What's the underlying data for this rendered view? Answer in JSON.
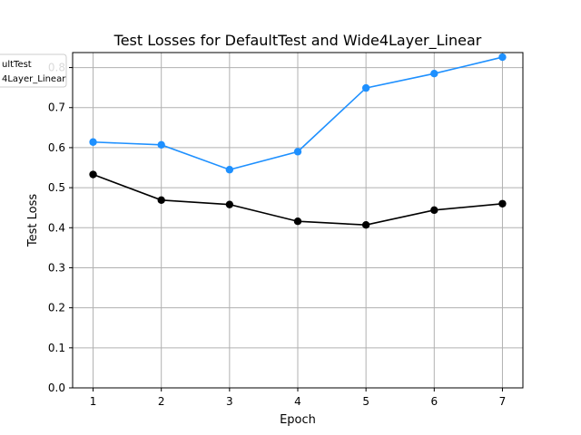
{
  "chart_data": {
    "type": "line",
    "title": "Test Losses for DefaultTest and Wide4Layer_Linear",
    "xlabel": "Epoch",
    "ylabel": "Test Loss",
    "x": [
      1,
      2,
      3,
      4,
      5,
      6,
      7
    ],
    "xlim": [
      0.7,
      7.3
    ],
    "ylim": [
      0.0,
      0.8375
    ],
    "yticks": [
      "0.0",
      "0.1",
      "0.2",
      "0.3",
      "0.4",
      "0.5",
      "0.6",
      "0.7",
      "0.8"
    ],
    "xticks": [
      "1",
      "2",
      "3",
      "4",
      "5",
      "6",
      "7"
    ],
    "grid": true,
    "legend_position": "top-left",
    "legend_labels": [
      "ultTest",
      "4Layer_Linear"
    ],
    "series": [
      {
        "name": "DefaultTest",
        "color": "#000000",
        "values": [
          0.533,
          0.469,
          0.458,
          0.416,
          0.407,
          0.444,
          0.46
        ]
      },
      {
        "name": "Wide4Layer_Linear",
        "color": "#1e90ff",
        "values": [
          0.614,
          0.607,
          0.545,
          0.59,
          0.749,
          0.785,
          0.826
        ]
      }
    ]
  }
}
